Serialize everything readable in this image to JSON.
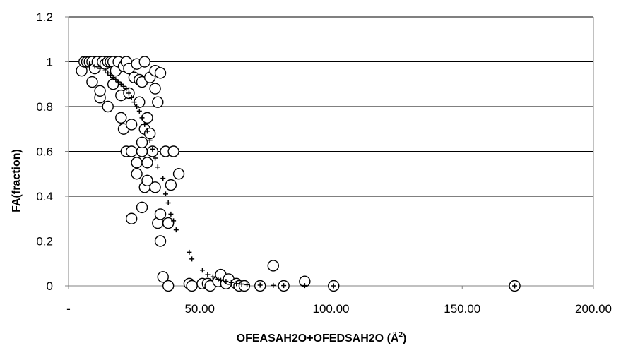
{
  "chart_data": {
    "type": "scatter",
    "title": "",
    "xlabel": "OFEASAH2O+OFEDSAH2O (Å",
    "xlabel_sup": "2",
    "xlabel_end": ")",
    "ylabel": "FA(fraction)",
    "xlim": [
      0,
      200
    ],
    "ylim": [
      0,
      1.2
    ],
    "x_ticks": [
      0,
      50,
      100,
      150,
      200
    ],
    "x_tick_labels": [
      "-",
      "50.00",
      "100.00",
      "150.00",
      "200.00"
    ],
    "y_ticks": [
      0,
      0.2,
      0.4,
      0.6,
      0.8,
      1,
      1.2
    ],
    "y_tick_labels": [
      "0",
      "0.2",
      "0.4",
      "0.6",
      "0.8",
      "1",
      "1.2"
    ],
    "grid": "horizontal",
    "legend": "none",
    "colors": {
      "axes": "#808080",
      "grid": "#000000",
      "marker": "#000000",
      "background": "#ffffff"
    },
    "series": [
      {
        "marker": "open-circle",
        "points": [
          [
            5,
            0.96
          ],
          [
            6,
            1
          ],
          [
            7,
            1
          ],
          [
            8,
            1
          ],
          [
            9,
            0.91
          ],
          [
            9,
            1
          ],
          [
            10,
            0.97
          ],
          [
            11,
            1
          ],
          [
            12,
            0.84
          ],
          [
            12,
            0.87
          ],
          [
            13,
            1
          ],
          [
            14,
            0.99
          ],
          [
            15,
            0.8
          ],
          [
            15,
            1
          ],
          [
            16,
            1
          ],
          [
            17,
            0.9
          ],
          [
            17,
            1
          ],
          [
            18,
            0.96
          ],
          [
            19,
            1
          ],
          [
            20,
            0.85
          ],
          [
            20,
            0.75
          ],
          [
            21,
            0.7
          ],
          [
            21,
            0.98
          ],
          [
            22,
            0.6
          ],
          [
            22,
            1
          ],
          [
            23,
            0.86
          ],
          [
            23,
            0.97
          ],
          [
            24,
            0.72
          ],
          [
            24,
            0.3
          ],
          [
            24,
            0.6
          ],
          [
            25,
            0.93
          ],
          [
            26,
            0.55
          ],
          [
            26,
            0.5
          ],
          [
            26,
            0.99
          ],
          [
            27,
            0.82
          ],
          [
            27,
            0.92
          ],
          [
            28,
            0.6
          ],
          [
            28,
            0.64
          ],
          [
            28,
            0.35
          ],
          [
            28,
            0.91
          ],
          [
            29,
            0.7
          ],
          [
            29,
            0.44
          ],
          [
            29,
            1
          ],
          [
            30,
            0.55
          ],
          [
            30,
            0.75
          ],
          [
            30,
            0.47
          ],
          [
            31,
            0.68
          ],
          [
            31,
            0.93
          ],
          [
            32,
            0.6
          ],
          [
            33,
            0.44
          ],
          [
            33,
            0.96
          ],
          [
            33,
            0.88
          ],
          [
            34,
            0.82
          ],
          [
            34,
            0.28
          ],
          [
            35,
            0.2
          ],
          [
            35,
            0.95
          ],
          [
            35,
            0.32
          ],
          [
            36,
            0.04
          ],
          [
            37,
            0.6
          ],
          [
            38,
            0.0
          ],
          [
            38,
            0.28
          ],
          [
            39,
            0.45
          ],
          [
            40,
            0.6
          ],
          [
            42,
            0.5
          ],
          [
            46,
            0.01
          ],
          [
            47,
            0.0
          ],
          [
            51,
            0.01
          ],
          [
            53,
            0.01
          ],
          [
            54,
            0.0
          ],
          [
            57,
            0.02
          ],
          [
            58,
            0.05
          ],
          [
            60,
            0.01
          ],
          [
            61,
            0.03
          ],
          [
            64,
            0.01
          ],
          [
            65,
            0.0
          ],
          [
            67,
            0.0
          ],
          [
            73,
            0.0
          ],
          [
            78,
            0.09
          ],
          [
            82,
            0.0
          ],
          [
            90,
            0.02
          ],
          [
            101,
            0.0
          ],
          [
            170,
            0.0
          ]
        ]
      },
      {
        "marker": "plus",
        "points": [
          [
            8,
            0.99
          ],
          [
            10,
            0.98
          ],
          [
            12,
            0.97
          ],
          [
            14,
            0.96
          ],
          [
            15,
            0.95
          ],
          [
            16,
            0.94
          ],
          [
            17,
            0.93
          ],
          [
            18,
            0.92
          ],
          [
            19,
            0.91
          ],
          [
            20,
            0.9
          ],
          [
            21,
            0.89
          ],
          [
            22,
            0.88
          ],
          [
            23,
            0.86
          ],
          [
            24,
            0.84
          ],
          [
            25,
            0.82
          ],
          [
            26,
            0.8
          ],
          [
            27,
            0.78
          ],
          [
            28,
            0.75
          ],
          [
            29,
            0.72
          ],
          [
            30,
            0.69
          ],
          [
            31,
            0.65
          ],
          [
            32,
            0.61
          ],
          [
            33,
            0.57
          ],
          [
            34,
            0.53
          ],
          [
            36,
            0.48
          ],
          [
            37,
            0.41
          ],
          [
            38,
            0.37
          ],
          [
            39,
            0.32
          ],
          [
            40,
            0.29
          ],
          [
            41,
            0.25
          ],
          [
            46,
            0.15
          ],
          [
            47,
            0.12
          ],
          [
            51,
            0.07
          ],
          [
            53,
            0.05
          ],
          [
            55,
            0.04
          ],
          [
            57,
            0.03
          ],
          [
            58,
            0.025
          ],
          [
            60,
            0.02
          ],
          [
            62,
            0.015
          ],
          [
            64,
            0.01
          ],
          [
            66,
            0.008
          ],
          [
            68,
            0.005
          ],
          [
            73,
            0.003
          ],
          [
            78,
            0.002
          ],
          [
            82,
            0.001
          ],
          [
            90,
            0.001
          ],
          [
            101,
            0.0
          ],
          [
            170,
            0.0
          ]
        ]
      }
    ]
  }
}
